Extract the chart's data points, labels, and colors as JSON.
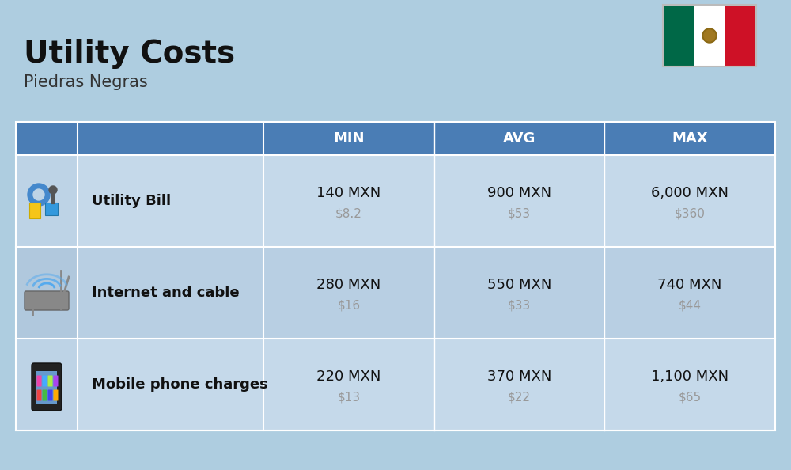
{
  "title": "Utility Costs",
  "subtitle": "Piedras Negras",
  "background_color": "#aecde0",
  "header_color": "#4a7db5",
  "header_text_color": "#ffffff",
  "row_color_light": "#c5d9ea",
  "row_color_dark": "#b8cfe3",
  "icon_col_color_light": "#bdd3e6",
  "icon_col_color_dark": "#b0c8dd",
  "col_headers": [
    "MIN",
    "AVG",
    "MAX"
  ],
  "rows": [
    {
      "label": "Utility Bill",
      "min_mxn": "140 MXN",
      "min_usd": "$8.2",
      "avg_mxn": "900 MXN",
      "avg_usd": "$53",
      "max_mxn": "6,000 MXN",
      "max_usd": "$360",
      "icon": "utility"
    },
    {
      "label": "Internet and cable",
      "min_mxn": "280 MXN",
      "min_usd": "$16",
      "avg_mxn": "550 MXN",
      "avg_usd": "$33",
      "max_mxn": "740 MXN",
      "max_usd": "$44",
      "icon": "internet"
    },
    {
      "label": "Mobile phone charges",
      "min_mxn": "220 MXN",
      "min_usd": "$13",
      "avg_mxn": "370 MXN",
      "avg_usd": "$22",
      "max_mxn": "1,100 MXN",
      "max_usd": "$65",
      "icon": "mobile"
    }
  ],
  "title_fontsize": 28,
  "subtitle_fontsize": 15,
  "header_fontsize": 13,
  "label_fontsize": 13,
  "value_fontsize": 13,
  "usd_fontsize": 11,
  "usd_color": "#999999",
  "flag_green": "#006847",
  "flag_white": "#FFFFFF",
  "flag_red": "#CE1126"
}
